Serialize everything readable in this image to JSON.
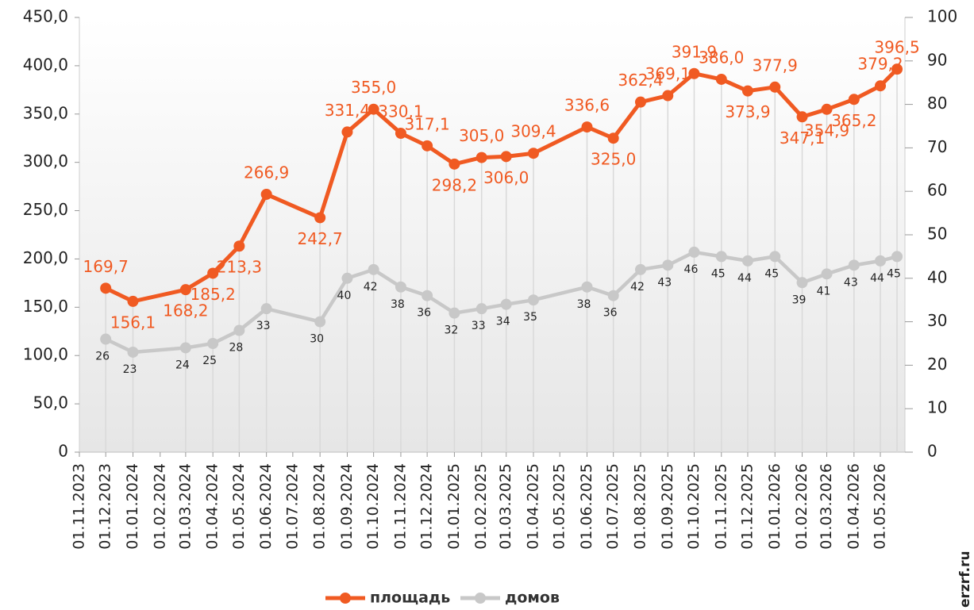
{
  "chart_data": {
    "type": "line",
    "x": [
      "01.12.2023",
      "01.01.2024",
      "01.03.2024",
      "01.04.2024",
      "01.05.2024",
      "01.06.2024",
      "01.08.2024",
      "01.09.2024",
      "01.10.2024",
      "01.11.2024",
      "01.12.2024",
      "01.01.2025",
      "01.02.2025",
      "01.03.2025",
      "01.04.2025",
      "01.06.2025",
      "01.07.2025",
      "01.08.2025",
      "01.09.2025",
      "01.10.2025",
      "01.11.2025",
      "01.12.2025",
      "01.01.2026",
      "01.02.2026",
      "01.03.2026",
      "01.04.2026",
      "01.05.2026",
      "20.05.2026"
    ],
    "series": [
      {
        "name": "площадь",
        "color": "#f05a22",
        "values": [
          169.7,
          156.1,
          168.2,
          185.2,
          213.3,
          266.9,
          242.7,
          331.4,
          355.0,
          330.1,
          317.1,
          298.2,
          305.0,
          306.0,
          309.4,
          336.6,
          325.0,
          362.4,
          369.1,
          391.9,
          386.0,
          373.9,
          377.9,
          347.1,
          354.9,
          365.2,
          379.2,
          396.5
        ],
        "value_labels": [
          "169,7",
          "156,1",
          "168,2",
          "185,2",
          "213,3",
          "266,9",
          "242,7",
          "331,4",
          "355,0",
          "330,1",
          "317,1",
          "298,2",
          "305,0",
          "306,0",
          "309,4",
          "336,6",
          "325,0",
          "362,4",
          "369,1",
          "391,9",
          "386,0",
          "373,9",
          "377,9",
          "347,1",
          "354,9",
          "365,2",
          "379,2",
          "396,5"
        ]
      },
      {
        "name": "домов",
        "color": "#c8c8c8",
        "axis": "y2",
        "values": [
          26,
          23,
          24,
          25,
          28,
          33,
          30,
          40,
          42,
          38,
          36,
          32,
          33,
          34,
          35,
          38,
          36,
          42,
          43,
          46,
          45,
          44,
          45,
          39,
          41,
          43,
          44,
          45
        ]
      }
    ],
    "xlim": [
      "01.11.2023",
      "29.05.2026"
    ],
    "xticks": [
      "01.11.2023",
      "01.12.2023",
      "01.01.2024",
      "01.02.2024",
      "01.03.2024",
      "01.04.2024",
      "01.05.2024",
      "01.06.2024",
      "01.07.2024",
      "01.08.2024",
      "01.09.2024",
      "01.10.2024",
      "01.11.2024",
      "01.12.2024",
      "01.01.2025",
      "01.02.2025",
      "01.03.2025",
      "01.04.2025",
      "01.05.2025",
      "01.06.2025",
      "01.07.2025",
      "01.08.2025",
      "01.09.2025",
      "01.10.2025",
      "01.11.2025",
      "01.12.2025",
      "01.01.2026",
      "01.02.2026",
      "01.03.2026",
      "01.04.2026",
      "01.05.2026"
    ],
    "ylim": [
      0,
      450
    ],
    "yticks": [
      0,
      {
        "value": 50,
        "label": "50,0"
      },
      {
        "value": 100,
        "label": "100,0"
      },
      {
        "value": 150,
        "label": "150,0"
      },
      {
        "value": 200,
        "label": "200,0"
      },
      {
        "value": 250,
        "label": "250,0"
      },
      {
        "value": 300,
        "label": "300,0"
      },
      {
        "value": 350,
        "label": "350,0"
      },
      {
        "value": 400,
        "label": "400,0"
      },
      {
        "value": 450,
        "label": "450,0"
      }
    ],
    "y2lim": [
      0,
      100
    ],
    "y2ticks": [
      0,
      10,
      20,
      30,
      40,
      50,
      60,
      70,
      80,
      90,
      100
    ],
    "watermark": "erzrf.ru"
  }
}
